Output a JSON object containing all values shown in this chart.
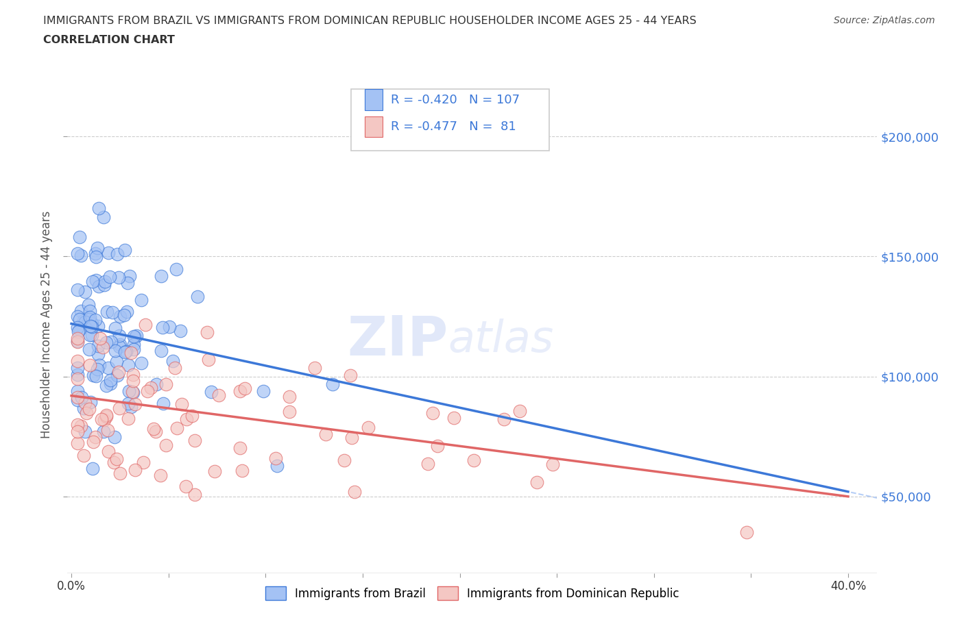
{
  "title_line1": "IMMIGRANTS FROM BRAZIL VS IMMIGRANTS FROM DOMINICAN REPUBLIC HOUSEHOLDER INCOME AGES 25 - 44 YEARS",
  "title_line2": "CORRELATION CHART",
  "source": "Source: ZipAtlas.com",
  "ylabel": "Householder Income Ages 25 - 44 years",
  "xlim": [
    -0.002,
    0.415
  ],
  "ylim": [
    18000,
    225000
  ],
  "ytick_values": [
    50000,
    100000,
    150000,
    200000
  ],
  "color_brazil": "#a4c2f4",
  "color_dr": "#f4c7c3",
  "color_brazil_line": "#3c78d8",
  "color_dr_line": "#e06666",
  "color_trend_dashed": "#a4c2f4",
  "legend_brazil_R": "-0.420",
  "legend_brazil_N": "107",
  "legend_dr_R": "-0.477",
  "legend_dr_N": "81",
  "legend_label_brazil": "Immigrants from Brazil",
  "legend_label_dr": "Immigrants from Dominican Republic",
  "watermark_zip": "ZIP",
  "watermark_atlas": "atlas",
  "brazil_intercept": 122000,
  "brazil_slope": -175000,
  "dr_intercept": 92000,
  "dr_slope": -105000
}
